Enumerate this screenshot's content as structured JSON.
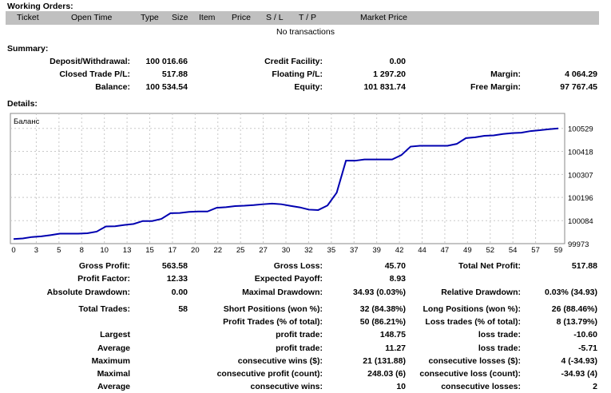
{
  "working_orders": {
    "title": "Working Orders:",
    "columns": [
      "Ticket",
      "Open Time",
      "Type",
      "Size",
      "Item",
      "Price",
      "S / L",
      "T / P",
      "Market Price"
    ],
    "empty_text": "No transactions"
  },
  "summary": {
    "title": "Summary:",
    "rows": [
      [
        "Deposit/Withdrawal:",
        "100 016.66",
        "Credit Facility:",
        "0.00",
        "",
        ""
      ],
      [
        "Closed Trade P/L:",
        "517.88",
        "Floating P/L:",
        "1 297.20",
        "Margin:",
        "4 064.29"
      ],
      [
        "Balance:",
        "100 534.54",
        "Equity:",
        "101 831.74",
        "Free Margin:",
        "97 767.45"
      ]
    ]
  },
  "details": {
    "title": "Details:",
    "rows": [
      [
        "Gross Profit:",
        "563.58",
        "Gross Loss:",
        "45.70",
        "Total Net Profit:",
        "517.88"
      ],
      [
        "Profit Factor:",
        "12.33",
        "Expected Payoff:",
        "8.93",
        "",
        ""
      ],
      [
        "Absolute Drawdown:",
        "0.00",
        "Maximal Drawdown:",
        "34.93 (0.03%)",
        "Relative Drawdown:",
        "0.03% (34.93)"
      ],
      [
        "Total Trades:",
        "58",
        "Short Positions (won %):",
        "32 (84.38%)",
        "Long Positions (won %):",
        "26 (88.46%)"
      ],
      [
        "",
        "",
        "Profit Trades (% of total):",
        "50 (86.21%)",
        "Loss trades (% of total):",
        "8 (13.79%)"
      ],
      [
        "Largest",
        "",
        "profit trade:",
        "148.75",
        "loss trade:",
        "-10.60"
      ],
      [
        "Average",
        "",
        "profit trade:",
        "11.27",
        "loss trade:",
        "-5.71"
      ],
      [
        "Maximum",
        "",
        "consecutive wins ($):",
        "21 (131.88)",
        "consecutive losses ($):",
        "4 (-34.93)"
      ],
      [
        "Maximal",
        "",
        "consecutive profit (count):",
        "248.03 (6)",
        "consecutive loss (count):",
        "-34.93 (4)"
      ],
      [
        "Average",
        "",
        "consecutive wins:",
        "10",
        "consecutive losses:",
        "2"
      ]
    ]
  },
  "chart_data": {
    "type": "line",
    "title": "Баланс",
    "xlabel": "",
    "ylabel": "",
    "x_ticks": [
      "0",
      "3",
      "5",
      "8",
      "10",
      "13",
      "15",
      "17",
      "20",
      "22",
      "25",
      "27",
      "30",
      "32",
      "35",
      "37",
      "39",
      "42",
      "44",
      "47",
      "49",
      "52",
      "54",
      "57",
      "59"
    ],
    "y_ticks": [
      "100529",
      "100418",
      "100307",
      "100196",
      "100084",
      "99973"
    ],
    "y_tick_values": [
      100529,
      100418,
      100307,
      100196,
      100084,
      99973
    ],
    "xlim": [
      0,
      59
    ],
    "ylim": [
      99973,
      100529
    ],
    "grid": true,
    "color": "#0000b0",
    "series": [
      {
        "name": "Баланс",
        "values": [
          99995,
          99998,
          100005,
          100008,
          100014,
          100021,
          100021,
          100021,
          100023,
          100031,
          100056,
          100057,
          100063,
          100068,
          100082,
          100082,
          100092,
          100120,
          100121,
          100126,
          100128,
          100128,
          100146,
          100149,
          100154,
          100156,
          100159,
          100163,
          100166,
          100163,
          100155,
          100148,
          100137,
          100135,
          100157,
          100219,
          100373,
          100373,
          100379,
          100379,
          100379,
          100379,
          100400,
          100441,
          100445,
          100445,
          100445,
          100445,
          100454,
          100482,
          100486,
          100493,
          100495,
          100502,
          100506,
          100508,
          100516,
          100520,
          100525,
          100529
        ]
      }
    ]
  }
}
